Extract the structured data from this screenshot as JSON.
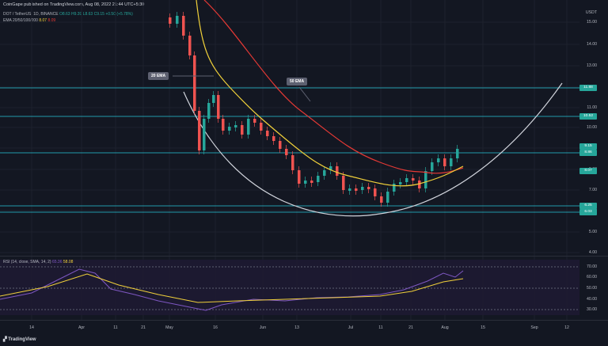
{
  "header": {
    "published": "CoinGape published on TradingView.com, Aug 08, 2022 21:44 UTC+5:30",
    "symbol_line": "DOT / TetherUS, 1D, BINANCE",
    "ohlc": "O8.63 H9.39 L8.63 C9.15 +0.50 (+5.78%)",
    "ema_legend": "EMA 20/50/100/200",
    "ema_values": [
      "8.07",
      "8.09"
    ]
  },
  "price_axis": {
    "unit": "USDT",
    "ticks": [
      "15.00",
      "14.00",
      "13.00",
      "12.00",
      "11.00",
      "10.00",
      "9.00",
      "8.00",
      "7.00",
      "6.00",
      "5.00",
      "4.00"
    ]
  },
  "rsi_axis": {
    "ticks": [
      "70.00",
      "60.00",
      "50.00",
      "40.00",
      "30.00"
    ]
  },
  "level_tags": [
    {
      "label": "11.88",
      "color": "#26a69a"
    },
    {
      "label": "10.52",
      "color": "#26a69a"
    },
    {
      "label": "9.15",
      "color": "#26a69a"
    },
    {
      "label": "8.86",
      "color": "#26a69a"
    },
    {
      "label": "8.07",
      "color": "#26a69a"
    },
    {
      "label": "6.25",
      "color": "#26a69a"
    },
    {
      "label": "6.03",
      "color": "#26a69a"
    }
  ],
  "annotations": {
    "ema20": "20 EMA",
    "ema50": "50 EMA"
  },
  "time_axis": [
    "14",
    "Apr",
    "11",
    "21",
    "May",
    "16",
    "Jun",
    "13",
    "Jul",
    "11",
    "21",
    "Aug",
    "15",
    "Sep",
    "12"
  ],
  "rsi_legend": "RSI (14, close, SMA, 14, 2)",
  "rsi_values": [
    "65.36",
    "58.08"
  ],
  "footer": "TradingView",
  "colors": {
    "up": "#26a69a",
    "down": "#ef5350",
    "ema20": "#f0d03a",
    "ema50": "#e53935",
    "level": "#26c6da",
    "rsi_line": "#7e57c2",
    "rsi_ma": "#f0d03a"
  }
}
